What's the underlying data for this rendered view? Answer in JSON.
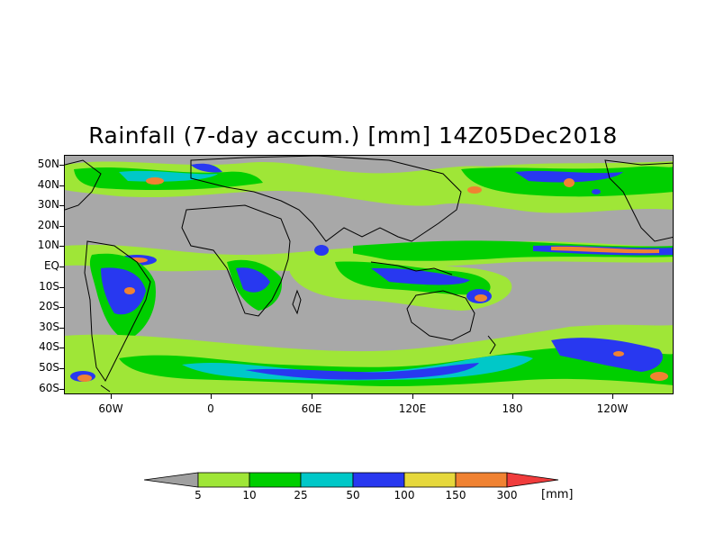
{
  "title": "Rainfall (7-day accum.) [mm] 14Z05Dec2018",
  "lat_labels": [
    "50N",
    "40N",
    "30N",
    "20N",
    "10N",
    "EQ",
    "10S",
    "20S",
    "30S",
    "40S",
    "50S",
    "60S"
  ],
  "lon_labels": [
    "60W",
    "0",
    "60E",
    "120E",
    "180",
    "120W"
  ],
  "colorbar": {
    "labels": [
      "5",
      "10",
      "25",
      "50",
      "100",
      "150",
      "300"
    ],
    "units": "[mm]",
    "colors": [
      "#a0a0a0",
      "#9fe637",
      "#00cf00",
      "#00c8c8",
      "#2838f0",
      "#e6d83c",
      "#f08232",
      "#f03c3c"
    ]
  },
  "colors": {
    "land_gray": "#a8a8a8",
    "light_green": "#9fe637",
    "green": "#00cf00",
    "teal": "#00c8c8",
    "blue": "#2838f0",
    "yellow": "#e6d83c",
    "orange": "#f08232",
    "red": "#f03c3c"
  }
}
